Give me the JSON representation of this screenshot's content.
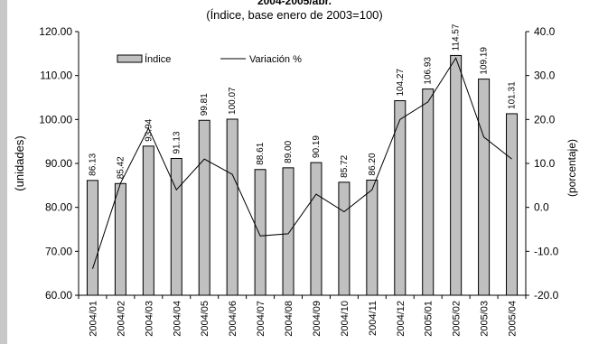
{
  "header": {
    "title": "2004-2005/abr.",
    "subtitle": "(Índice, base enero de 2003=100)"
  },
  "chart_data": {
    "type": "bar",
    "categories": [
      "2004/01",
      "2004/02",
      "2004/03",
      "2004/04",
      "2004/05",
      "2004/06",
      "2004/07",
      "2004/08",
      "2004/09",
      "2004/10",
      "2004/11",
      "2004/12",
      "2005/01",
      "2005/02",
      "2005/03",
      "2005/04"
    ],
    "series": [
      {
        "name": "Índice",
        "type": "bar",
        "axis": "left",
        "values": [
          86.13,
          85.42,
          93.94,
          91.13,
          99.81,
          100.07,
          88.61,
          89.0,
          90.19,
          85.72,
          86.2,
          104.27,
          106.93,
          114.57,
          109.19,
          101.31
        ],
        "labels": [
          "86.13",
          "85.42",
          "93.94",
          "91.13",
          "99.81",
          "100.07",
          "88.61",
          "89.00",
          "90.19",
          "85.72",
          "86.20",
          "104.27",
          "106.93",
          "114.57",
          "109.19",
          "101.31"
        ]
      },
      {
        "name": "Variación %",
        "type": "line",
        "axis": "right",
        "values": [
          -14.0,
          5.5,
          18.0,
          4.0,
          11.0,
          7.5,
          -6.5,
          -6.0,
          3.0,
          -1.0,
          4.0,
          20.0,
          24.0,
          34.0,
          16.0,
          11.0
        ]
      }
    ],
    "ylabel": "(unidades)",
    "ylabel_right": "(porcentaje)",
    "ylim": [
      60,
      120
    ],
    "ylim_right": [
      -20,
      40
    ],
    "yticks": [
      "60.00",
      "70.00",
      "80.00",
      "90.00",
      "100.00",
      "110.00",
      "120.00"
    ],
    "yticks_right": [
      "-20.0",
      "-10.0",
      "0.0",
      "10.0",
      "20.0",
      "30.0",
      "40.0"
    ],
    "grid": false,
    "legend_position": "top-left",
    "colors": {
      "bar_fill": "#c0c0c0",
      "bar_stroke": "#000000",
      "line": "#000000"
    }
  }
}
